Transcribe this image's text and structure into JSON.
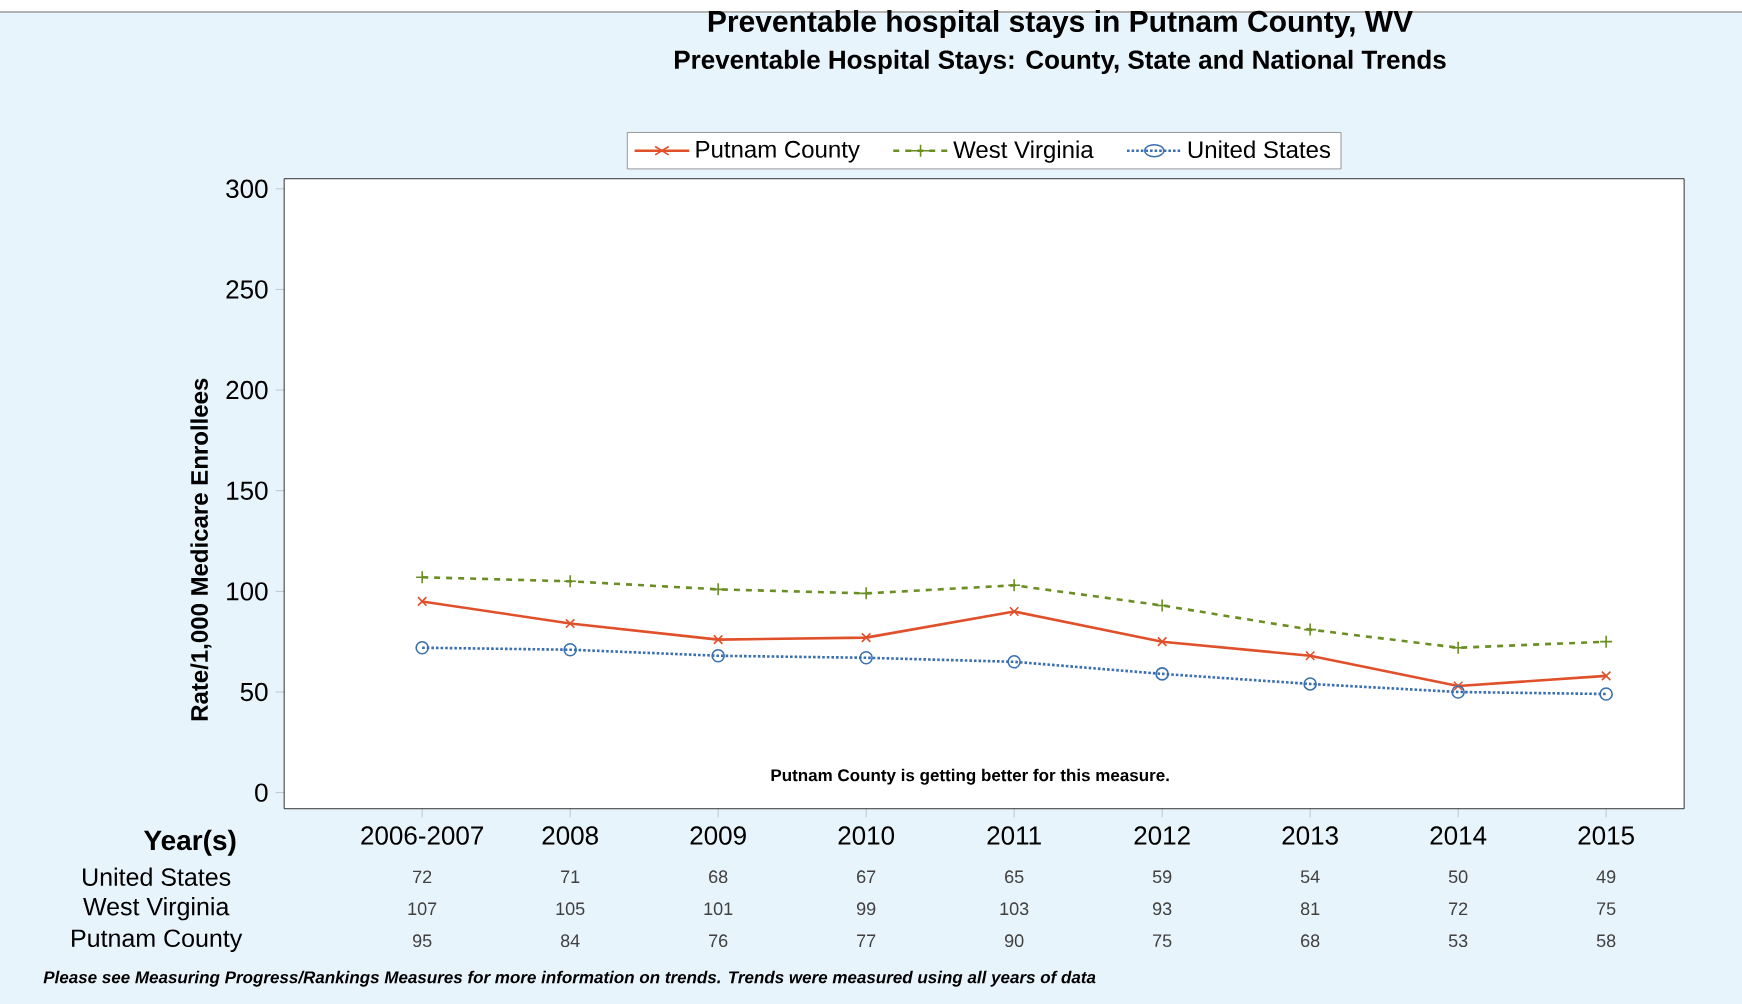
{
  "chart_data": {
    "type": "line",
    "title": "Preventable hospital stays in Putnam County, WV",
    "subtitle": "Preventable Hospital Stays: County, State and National Trends",
    "xlabel": "Year(s)",
    "ylabel": "Rate/1,000 Medicare Enrollees",
    "categories": [
      "2006-2007",
      "2008",
      "2009",
      "2010",
      "2011",
      "2012",
      "2013",
      "2014",
      "2015"
    ],
    "series": [
      {
        "name": "Putnam County",
        "color": "#e0502a",
        "marker": "cross",
        "line_style": "solid",
        "values": [
          95,
          84,
          76,
          77,
          90,
          75,
          68,
          53,
          58
        ]
      },
      {
        "name": "West Virginia",
        "color": "#6b8e23",
        "marker": "plus",
        "line_style": "dashed",
        "values": [
          107,
          105,
          101,
          99,
          103,
          93,
          81,
          72,
          75
        ]
      },
      {
        "name": "United States",
        "color": "#3a6fb0",
        "marker": "circle",
        "line_style": "dotted",
        "values": [
          72,
          71,
          68,
          67,
          65,
          59,
          54,
          50,
          49
        ]
      }
    ],
    "ylim": [
      -8,
      305
    ],
    "yticks": [
      0,
      50,
      100,
      150,
      200,
      250,
      300
    ],
    "legend": "top",
    "data_labels": true,
    "annotations": [
      "Putnam County is getting better for this measure.",
      "Please see Measuring Progress/Rankings Measures for more information on trends. Trends were measured using all years of data"
    ]
  }
}
